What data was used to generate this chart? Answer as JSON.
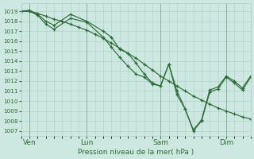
{
  "background_color": "#cce8e0",
  "grid_color": "#aacfc8",
  "line_color": "#2d6b38",
  "ylabel": "Pression niveau de la mer( hPa )",
  "ylim": [
    1006.5,
    1019.8
  ],
  "yticks": [
    1007,
    1008,
    1009,
    1010,
    1011,
    1012,
    1013,
    1014,
    1015,
    1016,
    1017,
    1018,
    1019
  ],
  "xlim": [
    0,
    28
  ],
  "xtick_labels": [
    "Ven",
    "Lun",
    "Sam",
    "Dim"
  ],
  "xtick_positions": [
    1,
    8,
    17,
    25
  ],
  "vlines": [
    1,
    8,
    17,
    25
  ],
  "series": [
    {
      "x": [
        0,
        1,
        2,
        3,
        4,
        5,
        6,
        7,
        8,
        9,
        10,
        11,
        12,
        13,
        14,
        15,
        16,
        17,
        18,
        19,
        20,
        21,
        22,
        23,
        24,
        25,
        26,
        27,
        28
      ],
      "y": [
        1019.0,
        1019.0,
        1018.8,
        1018.5,
        1018.2,
        1018.0,
        1017.7,
        1017.4,
        1017.1,
        1016.7,
        1016.3,
        1015.8,
        1015.3,
        1014.8,
        1014.3,
        1013.7,
        1013.1,
        1012.5,
        1012.0,
        1011.5,
        1011.0,
        1010.5,
        1010.1,
        1009.7,
        1009.3,
        1009.0,
        1008.7,
        1008.4,
        1008.2
      ]
    },
    {
      "x": [
        0,
        1,
        2,
        3,
        4,
        6,
        8,
        10,
        11,
        12,
        13,
        14,
        15,
        16,
        17,
        18,
        19,
        20,
        21,
        22,
        23,
        24,
        25,
        26,
        27,
        28
      ],
      "y": [
        1019.0,
        1019.1,
        1018.7,
        1018.0,
        1017.6,
        1018.7,
        1018.0,
        1017.0,
        1016.4,
        1015.2,
        1014.8,
        1013.8,
        1012.7,
        1011.8,
        1011.5,
        1013.7,
        1011.0,
        1009.2,
        1007.1,
        1008.1,
        1011.1,
        1011.4,
        1012.5,
        1012.0,
        1011.3,
        1012.5
      ]
    },
    {
      "x": [
        0,
        1,
        2,
        3,
        4,
        6,
        8,
        10,
        11,
        12,
        13,
        14,
        15,
        16,
        17,
        18,
        19,
        20,
        21,
        22,
        23,
        24,
        25,
        26,
        27,
        28
      ],
      "y": [
        1019.0,
        1019.0,
        1018.6,
        1017.7,
        1017.2,
        1018.3,
        1017.9,
        1016.4,
        1015.4,
        1014.4,
        1013.5,
        1012.7,
        1012.4,
        1011.7,
        1011.5,
        1013.7,
        1010.6,
        1009.2,
        1007.0,
        1008.0,
        1010.9,
        1011.2,
        1012.4,
        1011.8,
        1011.1,
        1012.4
      ]
    }
  ]
}
